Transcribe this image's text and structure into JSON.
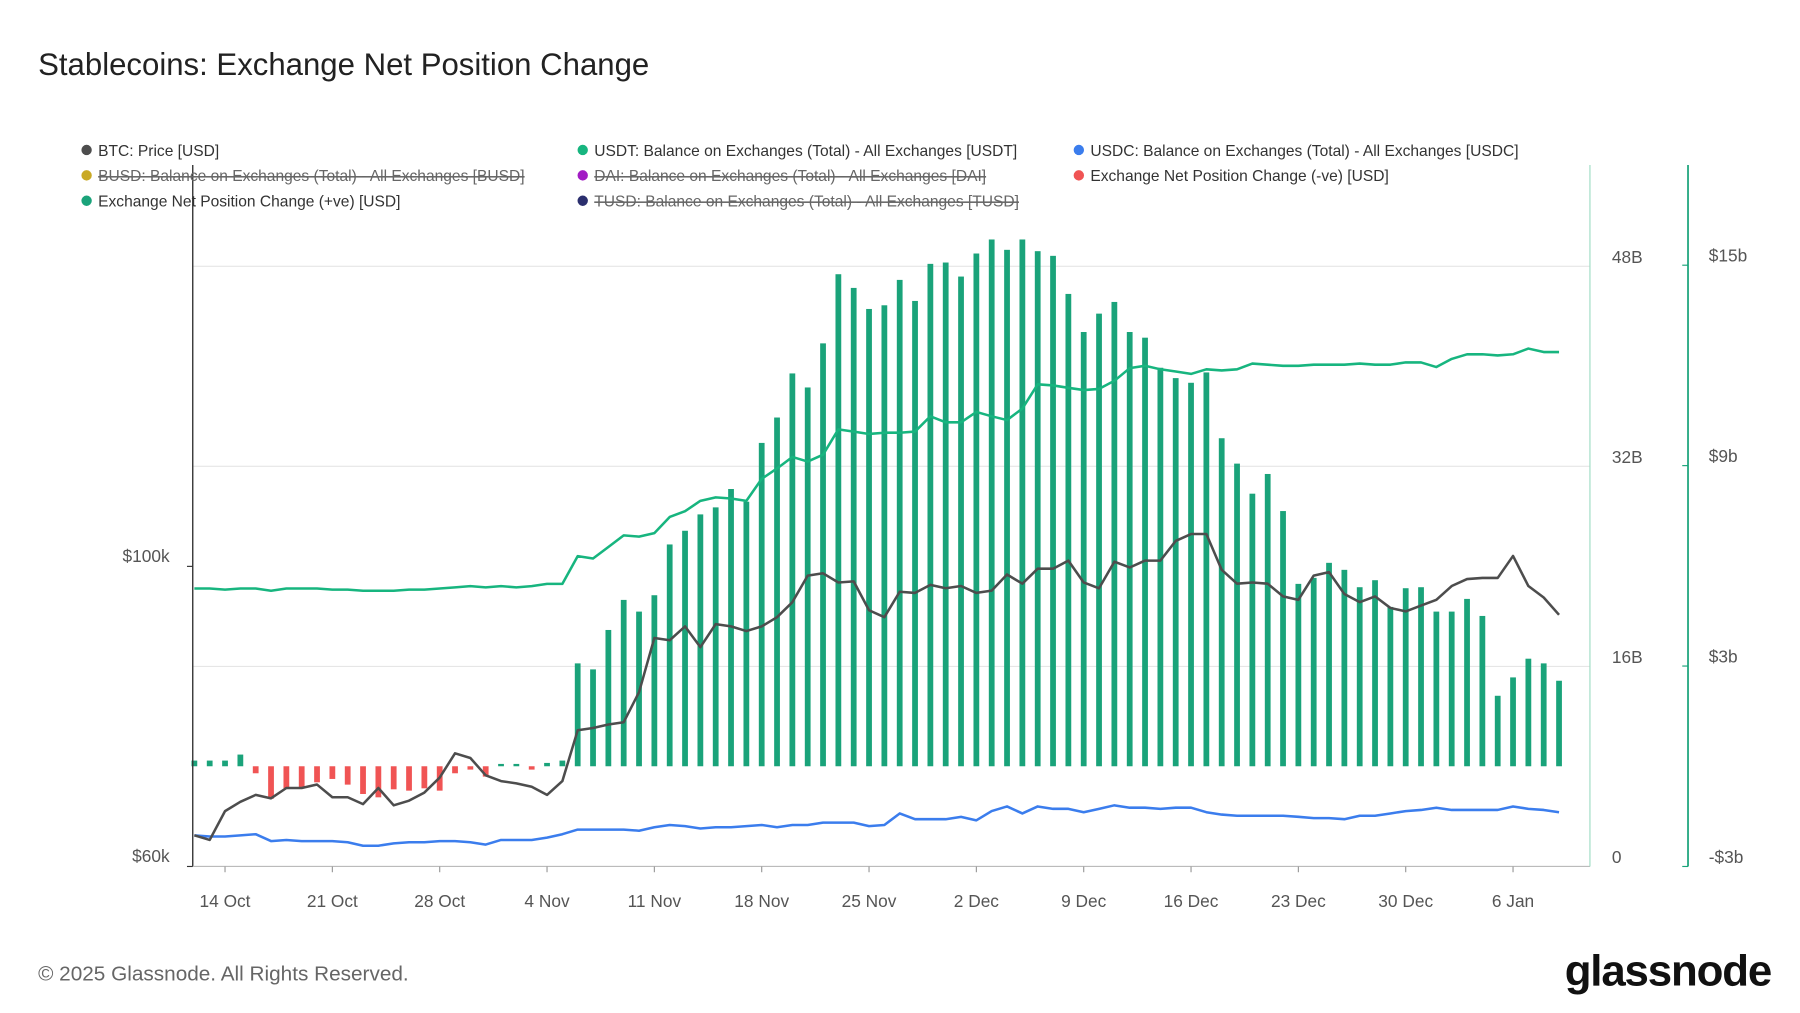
{
  "chart_data": {
    "type": "combo",
    "title": "Stablecoins: Exchange Net Position Change",
    "categories": [
      null,
      null,
      "14 Oct",
      null,
      null,
      null,
      null,
      null,
      null,
      "21 Oct",
      null,
      null,
      null,
      null,
      null,
      null,
      "28 Oct",
      null,
      null,
      null,
      null,
      null,
      null,
      "4 Nov",
      null,
      null,
      null,
      null,
      null,
      null,
      "11 Nov",
      null,
      null,
      null,
      null,
      null,
      null,
      "18 Nov",
      null,
      null,
      null,
      null,
      null,
      null,
      "25 Nov",
      null,
      null,
      null,
      null,
      null,
      null,
      "2 Dec",
      null,
      null,
      null,
      null,
      null,
      null,
      "9 Dec",
      null,
      null,
      null,
      null,
      null,
      null,
      "16 Dec",
      null,
      null,
      null,
      null,
      null,
      null,
      "23 Dec",
      null,
      null,
      null,
      null,
      null,
      null,
      "30 Dec",
      null,
      null,
      null,
      null,
      null,
      null,
      "6 Jan",
      null,
      null,
      null
    ],
    "ylim": [
      60000,
      153500
    ],
    "yticks": [
      {
        "value": 60000,
        "label": "$60k"
      },
      {
        "value": 100000,
        "label": "$100k"
      }
    ],
    "y2lim": [
      0,
      56.1
    ],
    "y2ticks": [
      0,
      {
        "value": 16,
        "label": "16B"
      },
      {
        "value": 32,
        "label": "32B"
      },
      {
        "value": 48,
        "label": "48B"
      }
    ],
    "y3lim": [
      -3,
      18
    ],
    "y3ticks": [
      {
        "value": -3,
        "label": "-$3b"
      },
      {
        "value": 3,
        "label": "$3b"
      },
      {
        "value": 9,
        "label": "$9b"
      },
      {
        "value": 15,
        "label": "$15b"
      }
    ],
    "grid": true,
    "series": [
      {
        "name": "BTC: Price [USD]",
        "color": "#4d4d4d",
        "type": "line",
        "axis": "y",
        "values": [
          64150,
          63540,
          67380,
          68620,
          69540,
          69080,
          70460,
          70460,
          70920,
          69230,
          69230,
          68310,
          70460,
          68150,
          68770,
          69850,
          71850,
          75080,
          74460,
          72150,
          71380,
          71080,
          70620,
          69540,
          71380,
          78150,
          78460,
          78920,
          79230,
          83230,
          90460,
          90150,
          92000,
          89230,
          92310,
          92000,
          91380,
          92000,
          93230,
          95230,
          98770,
          99080,
          97850,
          98000,
          94150,
          93230,
          96620,
          96460,
          97540,
          97080,
          97380,
          96460,
          96770,
          98920,
          97690,
          99690,
          99690,
          100770,
          97850,
          97080,
          100620,
          99850,
          100770,
          100770,
          103390,
          104310,
          104310,
          99540,
          97690,
          97850,
          97690,
          96000,
          95540,
          98770,
          99230,
          96310,
          95230,
          96000,
          94460,
          94000,
          94770,
          95540,
          97380,
          98310,
          98460,
          98460,
          101390,
          97380,
          95850,
          93540
        ]
      },
      {
        "name": "USDT: Balance on Exchanges (Total) - All Exchanges [USDT]",
        "color": "#17b57f",
        "type": "line",
        "axis": "y2",
        "values": [
          22.23,
          22.23,
          22.14,
          22.23,
          22.23,
          22.05,
          22.23,
          22.23,
          22.23,
          22.14,
          22.14,
          22.05,
          22.05,
          22.05,
          22.14,
          22.14,
          22.23,
          22.32,
          22.42,
          22.32,
          22.42,
          22.32,
          22.42,
          22.6,
          22.6,
          24.82,
          24.63,
          25.55,
          26.48,
          26.38,
          26.66,
          27.95,
          28.41,
          29.24,
          29.52,
          29.43,
          29.24,
          31.0,
          31.83,
          32.75,
          32.38,
          32.93,
          34.96,
          34.78,
          34.59,
          34.69,
          34.69,
          34.78,
          36.0,
          35.52,
          35.52,
          36.35,
          36.0,
          35.7,
          36.62,
          38.56,
          38.47,
          38.28,
          38.1,
          38.19,
          38.84,
          39.85,
          40.04,
          39.76,
          39.58,
          39.39,
          39.76,
          39.67,
          39.76,
          40.22,
          40.13,
          40.04,
          40.04,
          40.13,
          40.13,
          40.13,
          40.22,
          40.13,
          40.13,
          40.31,
          40.31,
          39.94,
          40.59,
          40.96,
          40.96,
          40.87,
          40.96,
          41.42,
          41.14,
          41.14
        ]
      },
      {
        "name": "USDC: Balance on Exchanges (Total) - All Exchanges [USDC]",
        "color": "#3b7ded",
        "type": "line",
        "axis": "y2",
        "values": [
          2.49,
          2.4,
          2.4,
          2.49,
          2.58,
          2.03,
          2.12,
          2.03,
          2.03,
          2.03,
          1.94,
          1.66,
          1.66,
          1.85,
          1.94,
          1.94,
          2.03,
          2.03,
          1.94,
          1.75,
          2.12,
          2.12,
          2.12,
          2.31,
          2.58,
          2.95,
          2.95,
          2.95,
          2.95,
          2.86,
          3.14,
          3.32,
          3.23,
          3.04,
          3.14,
          3.14,
          3.23,
          3.32,
          3.14,
          3.32,
          3.32,
          3.51,
          3.51,
          3.51,
          3.23,
          3.32,
          4.24,
          3.78,
          3.78,
          3.78,
          3.97,
          3.69,
          4.43,
          4.8,
          4.24,
          4.8,
          4.61,
          4.61,
          4.34,
          4.61,
          4.89,
          4.7,
          4.7,
          4.61,
          4.7,
          4.7,
          4.34,
          4.15,
          4.06,
          4.06,
          4.06,
          4.06,
          3.97,
          3.87,
          3.87,
          3.78,
          4.06,
          4.06,
          4.24,
          4.43,
          4.52,
          4.7,
          4.52,
          4.52,
          4.52,
          4.52,
          4.8,
          4.61,
          4.52,
          4.34
        ]
      },
      {
        "name": "BUSD: Balance on Exchanges (Total) - All Exchanges [BUSD]",
        "color": "#c9a925",
        "type": "line",
        "axis": "y2",
        "hidden": true
      },
      {
        "name": "DAI: Balance on Exchanges (Total) - All Exchanges [DAI]",
        "color": "#a21cc4",
        "type": "line",
        "axis": "y2",
        "hidden": true
      },
      {
        "name": "Exchange Net Position Change (-ve) [USD]",
        "color": "#f05454",
        "type": "bar",
        "axis": "y3",
        "values": [
          null,
          null,
          null,
          null,
          -0.21,
          -0.97,
          -0.66,
          -0.62,
          -0.48,
          -0.38,
          -0.55,
          -0.83,
          -0.93,
          -0.69,
          -0.73,
          -0.66,
          -0.73,
          -0.21,
          -0.1,
          -0.31,
          null,
          null,
          -0.1,
          null,
          null,
          null,
          null,
          null,
          null,
          null,
          null,
          null,
          null,
          null,
          null,
          null,
          null,
          null,
          null,
          null,
          null,
          null,
          null,
          null,
          null,
          null,
          null,
          null,
          null,
          null,
          null,
          null,
          null,
          null,
          null,
          null,
          null,
          null,
          null,
          null,
          null,
          null,
          null,
          null,
          null,
          null,
          null,
          null,
          null,
          null,
          null,
          null,
          null,
          null,
          null,
          null,
          null,
          null,
          null,
          null,
          null,
          null,
          null,
          null,
          null,
          null,
          null,
          null,
          null,
          null
        ]
      },
      {
        "name": "Exchange Net Position Change (+ve) [USD]",
        "color": "#1aa37a",
        "type": "bar",
        "axis": "y3",
        "values": [
          0.17,
          0.17,
          0.17,
          0.35,
          null,
          null,
          null,
          null,
          null,
          null,
          null,
          null,
          null,
          null,
          null,
          null,
          null,
          null,
          null,
          null,
          0.07,
          0.07,
          null,
          0.1,
          0.17,
          3.08,
          2.9,
          4.08,
          4.98,
          4.63,
          5.12,
          6.64,
          7.05,
          7.54,
          7.75,
          8.3,
          7.92,
          9.68,
          10.44,
          11.76,
          11.34,
          12.66,
          14.73,
          14.32,
          13.69,
          13.8,
          14.56,
          13.93,
          15.04,
          15.08,
          14.66,
          15.35,
          15.77,
          15.46,
          15.77,
          15.42,
          15.28,
          14.14,
          13,
          13.55,
          13.9,
          13,
          12.83,
          11.93,
          11.62,
          11.48,
          11.79,
          9.82,
          9.06,
          8.16,
          8.75,
          7.64,
          5.46,
          5.64,
          6.09,
          5.88,
          5.36,
          5.57,
          4.77,
          5.33,
          5.36,
          4.63,
          4.63,
          5.01,
          4.5,
          2.11,
          2.66,
          3.22,
          3.08,
          2.56
        ]
      },
      {
        "name": "TUSD: Balance on Exchanges (Total) - All Exchanges [TUSD]",
        "color": "#2b2f6e",
        "type": "line",
        "axis": "y2",
        "hidden": true
      }
    ]
  },
  "footer": "© 2025 Glassnode. All Rights Reserved.",
  "brand": "glassnode"
}
